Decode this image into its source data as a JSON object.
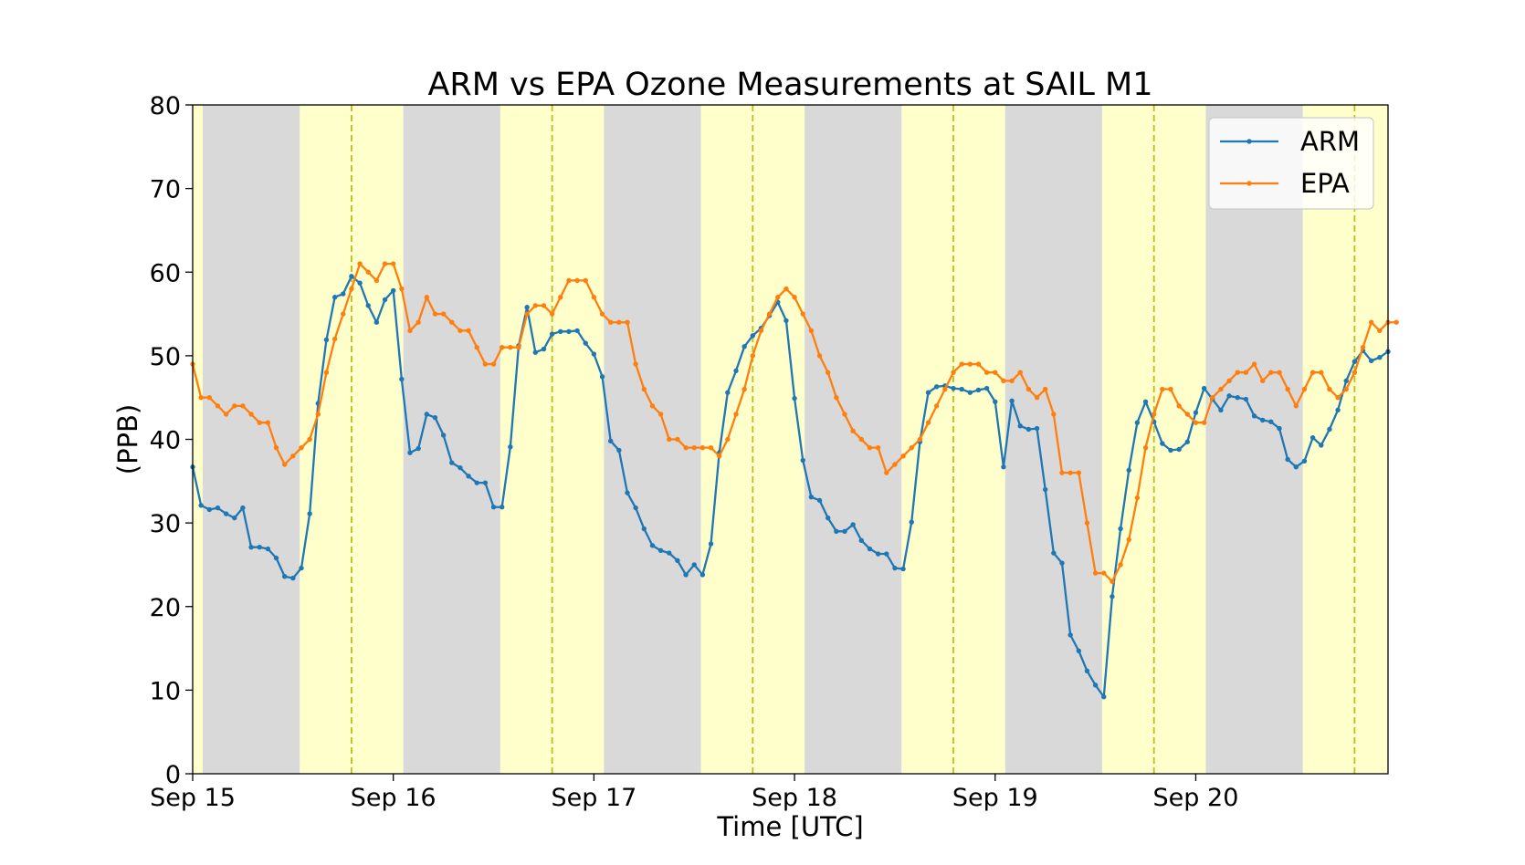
{
  "colors": {
    "arm": "#1f77b4",
    "epa": "#ff7f0e",
    "day_shading": "#ffffcc",
    "night_shading": "#d9d9d9",
    "noon_line": "#bcbd22",
    "legend_frame": "#cccccc"
  },
  "chart_data": {
    "type": "line",
    "title": "ARM vs EPA Ozone Measurements at SAIL M1",
    "xlabel": "Time [UTC]",
    "ylabel": "(PPB)",
    "x_unit": "hours since Sep 15 00:00 UTC",
    "xlim": [
      0,
      143
    ],
    "ylim": [
      0,
      80
    ],
    "y_ticks": [
      0,
      10,
      20,
      30,
      40,
      50,
      60,
      70,
      80
    ],
    "x_ticks": [
      {
        "hour": 0,
        "label": "Sep 15"
      },
      {
        "hour": 24,
        "label": "Sep 16"
      },
      {
        "hour": 48,
        "label": "Sep 17"
      },
      {
        "hour": 72,
        "label": "Sep 18"
      },
      {
        "hour": 96,
        "label": "Sep 19"
      },
      {
        "hour": 120,
        "label": "Sep 20"
      }
    ],
    "grid": false,
    "legend_position": "top-right",
    "daylight_periods_hours": [
      [
        0,
        1.2
      ],
      [
        12.8,
        25.2
      ],
      [
        36.8,
        49.2
      ],
      [
        60.8,
        73.2
      ],
      [
        84.8,
        97.2
      ],
      [
        108.8,
        121.2
      ],
      [
        132.8,
        143
      ]
    ],
    "night_periods_hours": [
      [
        1.2,
        12.8
      ],
      [
        25.2,
        36.8
      ],
      [
        49.2,
        60.8
      ],
      [
        73.2,
        84.8
      ],
      [
        97.2,
        108.8
      ],
      [
        121.2,
        132.8
      ]
    ],
    "solar_noon_hours": [
      19,
      43,
      67,
      91,
      115,
      139
    ],
    "series": [
      {
        "name": "ARM",
        "values": [
          36.7,
          32.1,
          31.6,
          31.8,
          31.1,
          30.6,
          31.8,
          27.1,
          27.1,
          26.9,
          25.8,
          23.6,
          23.4,
          24.6,
          31.1,
          44.3,
          51.9,
          57.0,
          57.4,
          59.5,
          58.7,
          56.0,
          54.0,
          56.7,
          57.8,
          47.2,
          38.4,
          38.9,
          43.0,
          42.6,
          40.5,
          37.2,
          36.6,
          35.6,
          34.8,
          34.8,
          31.9,
          31.9,
          39.1,
          51.2,
          55.8,
          50.4,
          50.8,
          52.6,
          52.9,
          52.9,
          53.0,
          51.5,
          50.2,
          47.5,
          39.8,
          38.7,
          33.6,
          31.8,
          29.3,
          27.3,
          26.7,
          26.4,
          25.5,
          23.8,
          25.0,
          23.8,
          27.5,
          38.4,
          45.6,
          48.2,
          51.1,
          52.4,
          53.3,
          54.8,
          56.4,
          54.2,
          44.9,
          37.5,
          33.1,
          32.7,
          30.6,
          29.0,
          29.0,
          29.8,
          27.9,
          26.9,
          26.3,
          26.3,
          24.6,
          24.5,
          30.1,
          39.7,
          45.6,
          46.3,
          46.4,
          46.1,
          46.0,
          45.6,
          45.9,
          46.1,
          44.5,
          36.7,
          44.6,
          41.6,
          41.2,
          41.3,
          34.0,
          26.4,
          25.2,
          16.6,
          14.7,
          12.3,
          10.6,
          9.2,
          21.2,
          29.3,
          36.3,
          42.0,
          44.5,
          42.1,
          39.5,
          38.7,
          38.8,
          39.7,
          43.2,
          46.1,
          44.8,
          43.5,
          45.2,
          45.0,
          44.8,
          42.8,
          42.3,
          42.1,
          41.3,
          37.6,
          36.7,
          37.4,
          40.2,
          39.3,
          41.2,
          43.5,
          47.0,
          49.3,
          50.6,
          49.4,
          49.8,
          50.5
        ]
      },
      {
        "name": "EPA",
        "values": [
          49,
          45,
          45,
          44,
          43,
          44,
          44,
          43,
          42,
          42,
          39,
          37,
          38,
          39,
          40,
          43,
          48,
          52,
          55,
          58,
          61,
          60,
          59,
          61,
          61,
          58,
          53,
          54,
          57,
          55,
          55,
          54,
          53,
          53,
          51,
          49,
          49,
          51,
          51,
          51,
          55,
          56,
          56,
          55,
          57,
          59,
          59,
          59,
          57,
          55,
          54,
          54,
          54,
          49,
          46,
          44,
          43,
          40,
          40,
          39,
          39,
          39,
          39,
          38,
          40,
          43,
          46,
          50,
          53,
          55,
          57,
          58,
          57,
          55,
          53,
          50,
          48,
          45,
          43,
          41,
          40,
          39,
          39,
          36,
          37,
          38,
          39,
          40,
          42,
          44,
          46,
          48,
          49,
          49,
          49,
          48,
          48,
          47,
          47,
          48,
          46,
          45,
          46,
          43,
          36,
          36,
          36,
          30,
          24,
          24,
          23,
          25,
          28,
          33,
          39,
          43,
          46,
          46,
          44,
          43,
          42,
          42,
          45,
          46,
          47,
          48,
          48,
          49,
          47,
          48,
          48,
          46,
          44,
          46,
          48,
          48,
          46,
          45,
          46,
          48,
          51,
          54,
          53,
          54,
          54
        ]
      }
    ]
  }
}
